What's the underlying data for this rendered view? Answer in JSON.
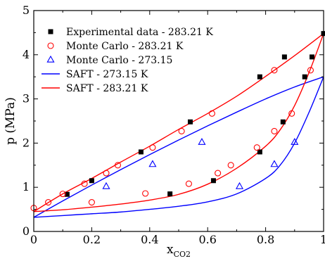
{
  "chart_data": {
    "type": "scatter",
    "title": "",
    "xlabel": "x",
    "xlabel_subscript": "CO2",
    "ylabel": "p (MPa)",
    "xlim": [
      0,
      1
    ],
    "ylim": [
      0,
      5
    ],
    "x_ticks": [
      0,
      0.2,
      0.4,
      0.6,
      0.8,
      1
    ],
    "x_tick_labels": [
      "0",
      "0.2",
      "0.4",
      "0.6",
      "0.8",
      "1"
    ],
    "y_ticks": [
      0,
      1,
      2,
      3,
      4,
      5
    ],
    "y_tick_labels": [
      "0",
      "1",
      "2",
      "3",
      "4",
      "5"
    ],
    "grid": false,
    "legend_position": "top-left",
    "series": [
      {
        "name": "Experimental data - 283.21 K",
        "kind": "scatter",
        "marker": "square-filled",
        "color": "#000000",
        "points": [
          [
            0.115,
            0.84
          ],
          [
            0.2,
            1.15
          ],
          [
            0.37,
            1.8
          ],
          [
            0.54,
            2.48
          ],
          [
            0.78,
            3.5
          ],
          [
            0.865,
            3.95
          ],
          [
            1.0,
            4.48
          ],
          [
            0.47,
            0.85
          ],
          [
            0.62,
            1.15
          ],
          [
            0.78,
            1.8
          ],
          [
            0.86,
            2.48
          ],
          [
            0.935,
            3.5
          ],
          [
            0.96,
            3.95
          ]
        ]
      },
      {
        "name": "Monte Carlo - 283.21 K",
        "kind": "scatter",
        "marker": "circle-open",
        "color": "#ff0000",
        "points": [
          [
            0.0,
            0.53
          ],
          [
            0.05,
            0.66
          ],
          [
            0.1,
            0.85
          ],
          [
            0.175,
            1.08
          ],
          [
            0.25,
            1.32
          ],
          [
            0.29,
            1.5
          ],
          [
            0.41,
            1.9
          ],
          [
            0.51,
            2.27
          ],
          [
            0.615,
            2.67
          ],
          [
            0.83,
            3.65
          ],
          [
            0.955,
            3.65
          ],
          [
            0.2,
            0.66
          ],
          [
            0.385,
            0.86
          ],
          [
            0.535,
            1.08
          ],
          [
            0.635,
            1.32
          ],
          [
            0.68,
            1.5
          ],
          [
            0.77,
            1.9
          ],
          [
            0.83,
            2.27
          ],
          [
            0.89,
            2.67
          ]
        ]
      },
      {
        "name": "Monte Carlo - 273.15",
        "kind": "scatter",
        "marker": "triangle-open",
        "color": "#0000ff",
        "points": [
          [
            0.25,
            1.02
          ],
          [
            0.41,
            1.52
          ],
          [
            0.58,
            2.02
          ],
          [
            0.71,
            1.02
          ],
          [
            0.83,
            1.52
          ],
          [
            0.9,
            2.02
          ]
        ]
      },
      {
        "name": "SAFT - 273.15 K",
        "kind": "line",
        "color": "#0000ff",
        "branches": [
          [
            [
              0,
              0.32
            ],
            [
              0.1,
              0.69
            ],
            [
              0.2,
              1.05
            ],
            [
              0.3,
              1.4
            ],
            [
              0.4,
              1.74
            ],
            [
              0.5,
              2.07
            ],
            [
              0.6,
              2.39
            ],
            [
              0.7,
              2.7
            ],
            [
              0.8,
              3.0
            ],
            [
              0.9,
              3.27
            ],
            [
              1.0,
              3.5
            ]
          ],
          [
            [
              0,
              0.32
            ],
            [
              0.1,
              0.36
            ],
            [
              0.2,
              0.4
            ],
            [
              0.3,
              0.44
            ],
            [
              0.4,
              0.5
            ],
            [
              0.5,
              0.57
            ],
            [
              0.6,
              0.67
            ],
            [
              0.7,
              0.85
            ],
            [
              0.8,
              1.2
            ],
            [
              0.85,
              1.5
            ],
            [
              0.9,
              2.0
            ],
            [
              0.95,
              2.7
            ],
            [
              1.0,
              3.5
            ]
          ]
        ]
      },
      {
        "name": "SAFT - 283.21 K",
        "kind": "line",
        "color": "#ff0000",
        "branches": [
          [
            [
              0,
              0.45
            ],
            [
              0.1,
              0.85
            ],
            [
              0.2,
              1.2
            ],
            [
              0.3,
              1.57
            ],
            [
              0.4,
              1.93
            ],
            [
              0.5,
              2.31
            ],
            [
              0.6,
              2.67
            ],
            [
              0.7,
              3.06
            ],
            [
              0.8,
              3.51
            ],
            [
              0.9,
              3.98
            ],
            [
              1.0,
              4.48
            ]
          ],
          [
            [
              0,
              0.45
            ],
            [
              0.1,
              0.49
            ],
            [
              0.2,
              0.55
            ],
            [
              0.3,
              0.62
            ],
            [
              0.4,
              0.71
            ],
            [
              0.5,
              0.84
            ],
            [
              0.6,
              1.07
            ],
            [
              0.7,
              1.43
            ],
            [
              0.8,
              1.93
            ],
            [
              0.85,
              2.3
            ],
            [
              0.9,
              2.85
            ],
            [
              0.95,
              3.6
            ],
            [
              1.0,
              4.48
            ]
          ]
        ]
      }
    ]
  }
}
